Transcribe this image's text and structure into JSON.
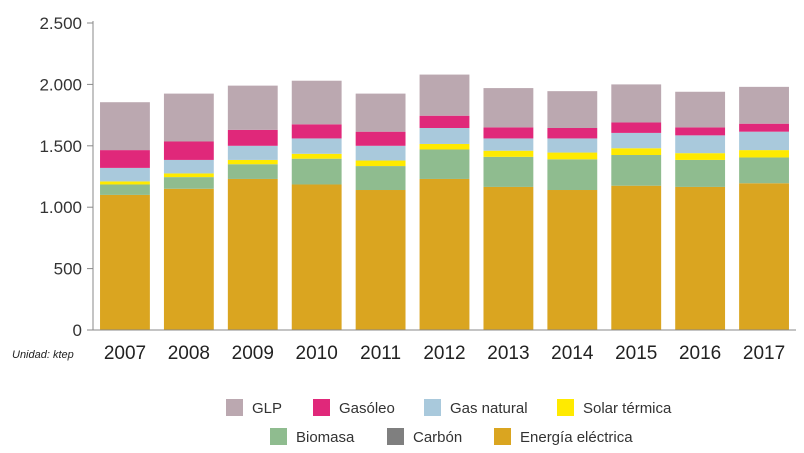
{
  "chart_data": {
    "type": "bar",
    "stacked": true,
    "title": "",
    "xlabel": "",
    "ylabel": "",
    "unit_note": "Unidad: ktep",
    "ylim": [
      0,
      2500
    ],
    "yticks": [
      0,
      500,
      1000,
      1500,
      2000,
      2500
    ],
    "ytick_labels": [
      "0",
      "500",
      "1.000",
      "1.500",
      "2.000",
      "2.500"
    ],
    "categories": [
      "2007",
      "2008",
      "2009",
      "2010",
      "2011",
      "2012",
      "2013",
      "2014",
      "2015",
      "2016",
      "2017"
    ],
    "series": [
      {
        "name": "Energía eléctrica",
        "color": "#DAA520",
        "values": [
          1100,
          1150,
          1230,
          1185,
          1140,
          1230,
          1165,
          1140,
          1175,
          1165,
          1195
        ]
      },
      {
        "name": "Carbón",
        "color": "#7F7F7F",
        "values": [
          0,
          0,
          0,
          0,
          0,
          0,
          0,
          0,
          0,
          0,
          0
        ]
      },
      {
        "name": "Biomasa",
        "color": "#8FBC8F",
        "values": [
          85,
          95,
          120,
          210,
          195,
          240,
          245,
          250,
          250,
          220,
          210
        ]
      },
      {
        "name": "Solar térmica",
        "color": "#FFEA00",
        "values": [
          25,
          30,
          35,
          40,
          45,
          45,
          50,
          55,
          55,
          55,
          60
        ]
      },
      {
        "name": "Gas natural",
        "color": "#A9C9DC",
        "values": [
          110,
          110,
          115,
          125,
          120,
          130,
          100,
          115,
          125,
          145,
          150
        ]
      },
      {
        "name": "Gasóleo",
        "color": "#E0287A",
        "values": [
          145,
          150,
          130,
          115,
          115,
          100,
          90,
          85,
          85,
          65,
          65
        ]
      },
      {
        "name": "GLP",
        "color": "#BBA8B0",
        "values": [
          390,
          390,
          360,
          355,
          310,
          335,
          320,
          300,
          310,
          290,
          300
        ]
      }
    ],
    "legend": {
      "position": "bottom",
      "rows": [
        [
          "GLP",
          "Gasóleo",
          "Gas natural",
          "Solar térmica"
        ],
        [
          "Biomasa",
          "Carbón",
          "Energía eléctrica"
        ]
      ]
    }
  }
}
